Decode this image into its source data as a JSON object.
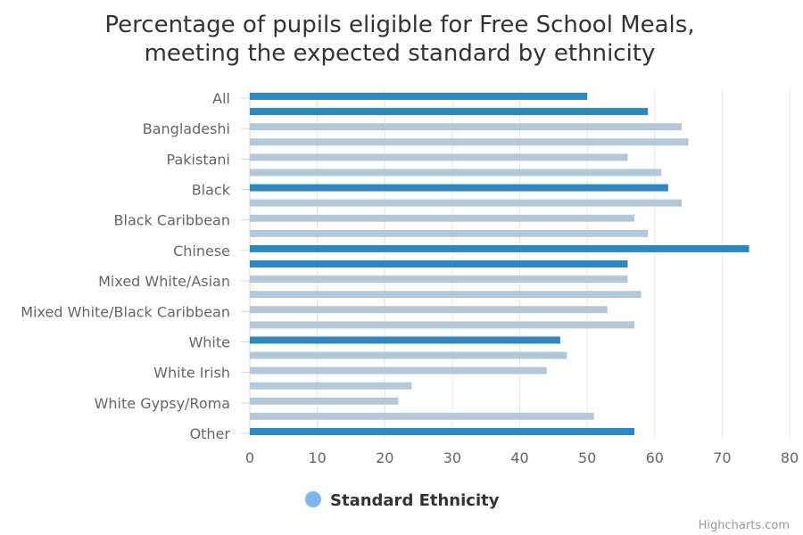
{
  "chart_data": {
    "type": "bar",
    "orientation": "horizontal",
    "title": [
      "Percentage of pupils eligible for Free School Meals,",
      "meeting the expected standard by ethnicity"
    ],
    "xlim": [
      0,
      80
    ],
    "x_ticks": [
      "0",
      "10",
      "20",
      "30",
      "40",
      "50",
      "60",
      "70",
      "80"
    ],
    "grid": true,
    "categories": [
      "All",
      "Bangladeshi",
      "Pakistani",
      "Black",
      "Black Caribbean",
      "Chinese",
      "Mixed White/Asian",
      "Mixed White/Black Caribbean",
      "White",
      "White Irish",
      "White Gypsy/Roma",
      "Other"
    ],
    "bars": [
      {
        "value": 50,
        "highlight": true
      },
      {
        "value": 59,
        "highlight": true
      },
      {
        "value": 64,
        "highlight": false
      },
      {
        "value": 65,
        "highlight": false
      },
      {
        "value": 56,
        "highlight": false
      },
      {
        "value": 61,
        "highlight": false
      },
      {
        "value": 62,
        "highlight": true
      },
      {
        "value": 64,
        "highlight": false
      },
      {
        "value": 57,
        "highlight": false
      },
      {
        "value": 59,
        "highlight": false
      },
      {
        "value": 74,
        "highlight": true
      },
      {
        "value": 56,
        "highlight": true
      },
      {
        "value": 56,
        "highlight": false
      },
      {
        "value": 58,
        "highlight": false
      },
      {
        "value": 53,
        "highlight": false
      },
      {
        "value": 57,
        "highlight": false
      },
      {
        "value": 46,
        "highlight": true
      },
      {
        "value": 47,
        "highlight": false
      },
      {
        "value": 44,
        "highlight": false
      },
      {
        "value": 24,
        "highlight": false
      },
      {
        "value": 22,
        "highlight": false
      },
      {
        "value": 51,
        "highlight": false
      },
      {
        "value": 57,
        "highlight": true
      }
    ],
    "colors": {
      "highlight": "#2b88c0",
      "standard": "#b4c8d8",
      "legend_marker": "#7cb5ec",
      "grid": "#e6e6e6",
      "axis_tick": "#ccd6eb"
    },
    "legend": {
      "label": "Standard Ethnicity",
      "position": "bottom-center"
    },
    "credits": "Highcharts.com"
  }
}
